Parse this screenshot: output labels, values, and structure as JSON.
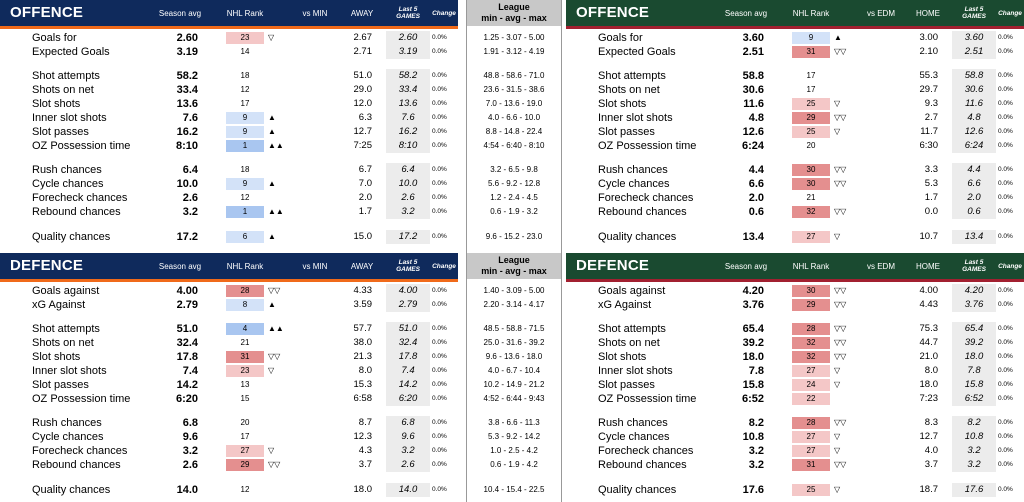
{
  "colors": {
    "left_header": "#0f2a5c",
    "left_bar": "#f06a1a",
    "right_header": "#1a4a30",
    "right_bar": "#a22030",
    "rank_good": "#a9c6f0",
    "rank_good_light": "#d3e2f8",
    "rank_bad": "#e48f8f",
    "rank_bad_light": "#f4c7c7",
    "league_header": "#c8c8c8"
  },
  "headers": {
    "left_offence": {
      "title": "OFFENCE",
      "season_avg": "Season avg",
      "nhl_rank": "NHL Rank",
      "vs": "vs MIN",
      "venue": "AWAY",
      "last5": "Last 5 GAMES",
      "change": "Change"
    },
    "left_defence": {
      "title": "DEFENCE",
      "season_avg": "Season avg",
      "nhl_rank": "NHL Rank",
      "vs": "vs MIN",
      "venue": "AWAY",
      "last5": "Last 5 GAMES",
      "change": "Change"
    },
    "right_offence": {
      "title": "OFFENCE",
      "season_avg": "Season avg",
      "nhl_rank": "NHL Rank",
      "vs": "vs EDM",
      "venue": "HOME",
      "last5": "Last 5 GAMES",
      "change": "Change"
    },
    "right_defence": {
      "title": "DEFENCE",
      "season_avg": "Season avg",
      "nhl_rank": "NHL Rank",
      "vs": "vs EDM",
      "venue": "HOME",
      "last5": "Last 5 GAMES",
      "change": "Change"
    },
    "league": {
      "line1": "League",
      "line2": "min - avg - max"
    }
  },
  "left_offence_rows": [
    {
      "label": "Goals for",
      "avg": "2.60",
      "rank": "23",
      "rank_level": "bad_light",
      "arrow": "▽",
      "vs": "2.67",
      "last5": "2.60",
      "change": "0.0%"
    },
    {
      "label": "Expected Goals",
      "avg": "3.19",
      "rank": "14",
      "rank_level": "none",
      "arrow": "",
      "vs": "2.71",
      "last5": "3.19",
      "change": "0.0%"
    },
    {
      "label": "Shot attempts",
      "avg": "58.2",
      "rank": "18",
      "rank_level": "none",
      "arrow": "",
      "vs": "51.0",
      "last5": "58.2",
      "change": "0.0%"
    },
    {
      "label": "Shots on net",
      "avg": "33.4",
      "rank": "12",
      "rank_level": "none",
      "arrow": "",
      "vs": "29.0",
      "last5": "33.4",
      "change": "0.0%"
    },
    {
      "label": "Slot shots",
      "avg": "13.6",
      "rank": "17",
      "rank_level": "none",
      "arrow": "",
      "vs": "12.0",
      "last5": "13.6",
      "change": "0.0%"
    },
    {
      "label": "Inner slot shots",
      "avg": "7.6",
      "rank": "9",
      "rank_level": "good_light",
      "arrow": "▲",
      "vs": "6.3",
      "last5": "7.6",
      "change": "0.0%"
    },
    {
      "label": "Slot passes",
      "avg": "16.2",
      "rank": "9",
      "rank_level": "good_light",
      "arrow": "▲",
      "vs": "12.7",
      "last5": "16.2",
      "change": "0.0%"
    },
    {
      "label": "OZ Possession time",
      "avg": "8:10",
      "rank": "1",
      "rank_level": "good",
      "arrow": "▲▲",
      "vs": "7:25",
      "last5": "8:10",
      "change": "0.0%"
    },
    {
      "label": "Rush chances",
      "avg": "6.4",
      "rank": "18",
      "rank_level": "none",
      "arrow": "",
      "vs": "6.7",
      "last5": "6.4",
      "change": "0.0%"
    },
    {
      "label": "Cycle chances",
      "avg": "10.0",
      "rank": "9",
      "rank_level": "good_light",
      "arrow": "▲",
      "vs": "7.0",
      "last5": "10.0",
      "change": "0.0%"
    },
    {
      "label": "Forecheck chances",
      "avg": "2.6",
      "rank": "12",
      "rank_level": "none",
      "arrow": "",
      "vs": "2.0",
      "last5": "2.6",
      "change": "0.0%"
    },
    {
      "label": "Rebound chances",
      "avg": "3.2",
      "rank": "1",
      "rank_level": "good",
      "arrow": "▲▲",
      "vs": "1.7",
      "last5": "3.2",
      "change": "0.0%"
    },
    {
      "label": "Quality chances",
      "avg": "17.2",
      "rank": "6",
      "rank_level": "good_light",
      "arrow": "▲",
      "vs": "15.0",
      "last5": "17.2",
      "change": "0.0%"
    }
  ],
  "left_defence_rows": [
    {
      "label": "Goals against",
      "avg": "4.00",
      "rank": "28",
      "rank_level": "bad",
      "arrow": "▽▽",
      "vs": "4.33",
      "last5": "4.00",
      "change": "0.0%"
    },
    {
      "label": "xG Against",
      "avg": "2.79",
      "rank": "8",
      "rank_level": "good_light",
      "arrow": "▲",
      "vs": "3.59",
      "last5": "2.79",
      "change": "0.0%"
    },
    {
      "label": "Shot attempts",
      "avg": "51.0",
      "rank": "4",
      "rank_level": "good",
      "arrow": "▲▲",
      "vs": "57.7",
      "last5": "51.0",
      "change": "0.0%"
    },
    {
      "label": "Shots on net",
      "avg": "32.4",
      "rank": "21",
      "rank_level": "none",
      "arrow": "",
      "vs": "38.0",
      "last5": "32.4",
      "change": "0.0%"
    },
    {
      "label": "Slot shots",
      "avg": "17.8",
      "rank": "31",
      "rank_level": "bad",
      "arrow": "▽▽",
      "vs": "21.3",
      "last5": "17.8",
      "change": "0.0%"
    },
    {
      "label": "Inner slot shots",
      "avg": "7.4",
      "rank": "23",
      "rank_level": "bad_light",
      "arrow": "▽",
      "vs": "8.0",
      "last5": "7.4",
      "change": "0.0%"
    },
    {
      "label": "Slot passes",
      "avg": "14.2",
      "rank": "13",
      "rank_level": "none",
      "arrow": "",
      "vs": "15.3",
      "last5": "14.2",
      "change": "0.0%"
    },
    {
      "label": "OZ Possession time",
      "avg": "6:20",
      "rank": "15",
      "rank_level": "none",
      "arrow": "",
      "vs": "6:58",
      "last5": "6:20",
      "change": "0.0%"
    },
    {
      "label": "Rush chances",
      "avg": "6.8",
      "rank": "20",
      "rank_level": "none",
      "arrow": "",
      "vs": "8.7",
      "last5": "6.8",
      "change": "0.0%"
    },
    {
      "label": "Cycle chances",
      "avg": "9.6",
      "rank": "17",
      "rank_level": "none",
      "arrow": "",
      "vs": "12.3",
      "last5": "9.6",
      "change": "0.0%"
    },
    {
      "label": "Forecheck chances",
      "avg": "3.2",
      "rank": "27",
      "rank_level": "bad_light",
      "arrow": "▽",
      "vs": "4.3",
      "last5": "3.2",
      "change": "0.0%"
    },
    {
      "label": "Rebound chances",
      "avg": "2.6",
      "rank": "29",
      "rank_level": "bad",
      "arrow": "▽▽",
      "vs": "3.7",
      "last5": "2.6",
      "change": "0.0%"
    },
    {
      "label": "Quality chances",
      "avg": "14.0",
      "rank": "12",
      "rank_level": "none",
      "arrow": "",
      "vs": "18.0",
      "last5": "14.0",
      "change": "0.0%"
    }
  ],
  "right_offence_rows": [
    {
      "label": "Goals for",
      "avg": "3.60",
      "rank": "9",
      "rank_level": "good_light",
      "arrow": "▲",
      "vs": "3.00",
      "last5": "3.60",
      "change": "0.0%"
    },
    {
      "label": "Expected Goals",
      "avg": "2.51",
      "rank": "31",
      "rank_level": "bad",
      "arrow": "▽▽",
      "vs": "2.10",
      "last5": "2.51",
      "change": "0.0%"
    },
    {
      "label": "Shot attempts",
      "avg": "58.8",
      "rank": "17",
      "rank_level": "none",
      "arrow": "",
      "vs": "55.3",
      "last5": "58.8",
      "change": "0.0%"
    },
    {
      "label": "Shots on net",
      "avg": "30.6",
      "rank": "17",
      "rank_level": "none",
      "arrow": "",
      "vs": "29.7",
      "last5": "30.6",
      "change": "0.0%"
    },
    {
      "label": "Slot shots",
      "avg": "11.6",
      "rank": "25",
      "rank_level": "bad_light",
      "arrow": "▽",
      "vs": "9.3",
      "last5": "11.6",
      "change": "0.0%"
    },
    {
      "label": "Inner slot shots",
      "avg": "4.8",
      "rank": "29",
      "rank_level": "bad",
      "arrow": "▽▽",
      "vs": "2.7",
      "last5": "4.8",
      "change": "0.0%"
    },
    {
      "label": "Slot passes",
      "avg": "12.6",
      "rank": "25",
      "rank_level": "bad_light",
      "arrow": "▽",
      "vs": "11.7",
      "last5": "12.6",
      "change": "0.0%"
    },
    {
      "label": "OZ Possession time",
      "avg": "6:24",
      "rank": "20",
      "rank_level": "none",
      "arrow": "",
      "vs": "6:30",
      "last5": "6:24",
      "change": "0.0%"
    },
    {
      "label": "Rush chances",
      "avg": "4.4",
      "rank": "30",
      "rank_level": "bad",
      "arrow": "▽▽",
      "vs": "3.3",
      "last5": "4.4",
      "change": "0.0%"
    },
    {
      "label": "Cycle chances",
      "avg": "6.6",
      "rank": "30",
      "rank_level": "bad",
      "arrow": "▽▽",
      "vs": "5.3",
      "last5": "6.6",
      "change": "0.0%"
    },
    {
      "label": "Forecheck chances",
      "avg": "2.0",
      "rank": "21",
      "rank_level": "none",
      "arrow": "",
      "vs": "1.7",
      "last5": "2.0",
      "change": "0.0%"
    },
    {
      "label": "Rebound chances",
      "avg": "0.6",
      "rank": "32",
      "rank_level": "bad",
      "arrow": "▽▽",
      "vs": "0.0",
      "last5": "0.6",
      "change": "0.0%"
    },
    {
      "label": "Quality chances",
      "avg": "13.4",
      "rank": "27",
      "rank_level": "bad_light",
      "arrow": "▽",
      "vs": "10.7",
      "last5": "13.4",
      "change": "0.0%"
    }
  ],
  "right_defence_rows": [
    {
      "label": "Goals against",
      "avg": "4.20",
      "rank": "30",
      "rank_level": "bad",
      "arrow": "▽▽",
      "vs": "4.00",
      "last5": "4.20",
      "change": "0.0%"
    },
    {
      "label": "xG Against",
      "avg": "3.76",
      "rank": "29",
      "rank_level": "bad",
      "arrow": "▽▽",
      "vs": "4.43",
      "last5": "3.76",
      "change": "0.0%"
    },
    {
      "label": "Shot attempts",
      "avg": "65.4",
      "rank": "28",
      "rank_level": "bad",
      "arrow": "▽▽",
      "vs": "75.3",
      "last5": "65.4",
      "change": "0.0%"
    },
    {
      "label": "Shots on net",
      "avg": "39.2",
      "rank": "32",
      "rank_level": "bad",
      "arrow": "▽▽",
      "vs": "44.7",
      "last5": "39.2",
      "change": "0.0%"
    },
    {
      "label": "Slot shots",
      "avg": "18.0",
      "rank": "32",
      "rank_level": "bad",
      "arrow": "▽▽",
      "vs": "21.0",
      "last5": "18.0",
      "change": "0.0%"
    },
    {
      "label": "Inner slot shots",
      "avg": "7.8",
      "rank": "27",
      "rank_level": "bad_light",
      "arrow": "▽",
      "vs": "8.0",
      "last5": "7.8",
      "change": "0.0%"
    },
    {
      "label": "Slot passes",
      "avg": "15.8",
      "rank": "24",
      "rank_level": "bad_light",
      "arrow": "▽",
      "vs": "18.0",
      "last5": "15.8",
      "change": "0.0%"
    },
    {
      "label": "OZ Possession time",
      "avg": "6:52",
      "rank": "22",
      "rank_level": "bad_light",
      "arrow": "",
      "vs": "7:23",
      "last5": "6:52",
      "change": "0.0%"
    },
    {
      "label": "Rush chances",
      "avg": "8.2",
      "rank": "28",
      "rank_level": "bad",
      "arrow": "▽▽",
      "vs": "8.3",
      "last5": "8.2",
      "change": "0.0%"
    },
    {
      "label": "Cycle chances",
      "avg": "10.8",
      "rank": "27",
      "rank_level": "bad_light",
      "arrow": "▽",
      "vs": "12.7",
      "last5": "10.8",
      "change": "0.0%"
    },
    {
      "label": "Forecheck chances",
      "avg": "3.2",
      "rank": "27",
      "rank_level": "bad_light",
      "arrow": "▽",
      "vs": "4.0",
      "last5": "3.2",
      "change": "0.0%"
    },
    {
      "label": "Rebound chances",
      "avg": "3.2",
      "rank": "31",
      "rank_level": "bad",
      "arrow": "▽▽",
      "vs": "3.7",
      "last5": "3.2",
      "change": "0.0%"
    },
    {
      "label": "Quality chances",
      "avg": "17.6",
      "rank": "25",
      "rank_level": "bad_light",
      "arrow": "▽",
      "vs": "18.7",
      "last5": "17.6",
      "change": "0.0%"
    }
  ],
  "league_offence": [
    "1.25 - 3.07 - 5.00",
    "1.91 - 3.12 - 4.19",
    "48.8 - 58.6 - 71.0",
    "23.6 - 31.5 - 38.6",
    "7.0 - 13.6 - 19.0",
    "4.0 - 6.6 - 10.0",
    "8.8 - 14.8 - 22.4",
    "4:54 - 6:40 - 8:10",
    "3.2 - 6.5 - 9.8",
    "5.6 - 9.2 - 12.8",
    "1.2 - 2.4 - 4.5",
    "0.6 - 1.9 - 3.2",
    "9.6 - 15.2 - 23.0"
  ],
  "league_defence": [
    "1.40 - 3.09 - 5.00",
    "2.20 - 3.14 - 4.17",
    "48.5 - 58.8 - 71.5",
    "25.0 - 31.6 - 39.2",
    "9.6 - 13.6 - 18.0",
    "4.0 - 6.7 - 10.4",
    "10.2 - 14.9 - 21.2",
    "4:52 - 6:44 - 9:43",
    "3.8 - 6.6 - 11.3",
    "5.3 - 9.2 - 14.2",
    "1.0 - 2.5 - 4.2",
    "0.6 - 1.9 - 4.2",
    "10.4 - 15.4 - 22.5"
  ]
}
